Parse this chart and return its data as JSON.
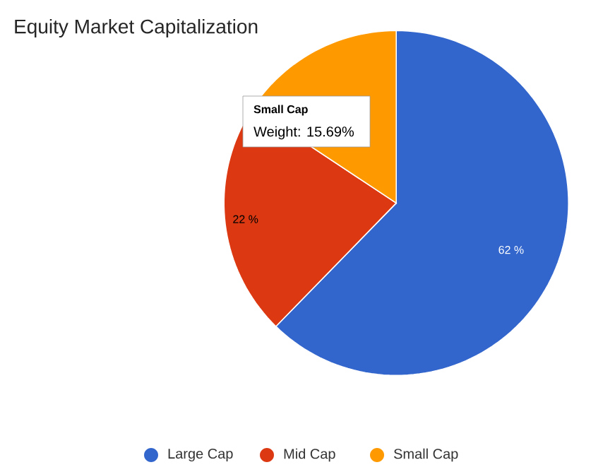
{
  "chart_data": {
    "type": "pie",
    "title": "Equity Market Capitalization",
    "categories": [
      "Large Cap",
      "Mid Cap",
      "Small Cap"
    ],
    "values": [
      62.31,
      22,
      15.69
    ],
    "colors": [
      "#3366cc",
      "#dc3912",
      "#ff9900"
    ],
    "value_labels": [
      "62 %",
      "22 %",
      null
    ],
    "annotations": [
      "Small Cap",
      "Weight: 15.69%"
    ],
    "legend": "bottom"
  }
}
